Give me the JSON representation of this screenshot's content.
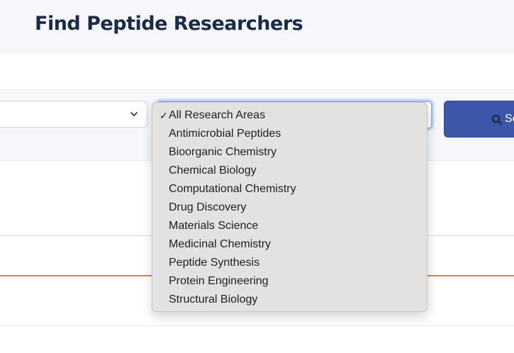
{
  "header": {
    "title": "Find Peptide Researchers"
  },
  "filters": {
    "left_select_value": "",
    "research_area_select": {
      "selected": "All Research Areas",
      "options": [
        "All Research Areas",
        "Antimicrobial Peptides",
        "Bioorganic Chemistry",
        "Chemical Biology",
        "Computational Chemistry",
        "Drug Discovery",
        "Materials Science",
        "Medicinal Chemistry",
        "Peptide Synthesis",
        "Protein Engineering",
        "Structural Biology"
      ]
    },
    "search_button_label": "Se"
  },
  "icons": {
    "chevron": "chevron-down-icon",
    "search": "search-icon",
    "check": "check-icon"
  },
  "colors": {
    "title": "#1b2a47",
    "button": "#3d56a8",
    "accent_line": "#d9892f",
    "dropdown_bg": "#e3e2e0"
  }
}
